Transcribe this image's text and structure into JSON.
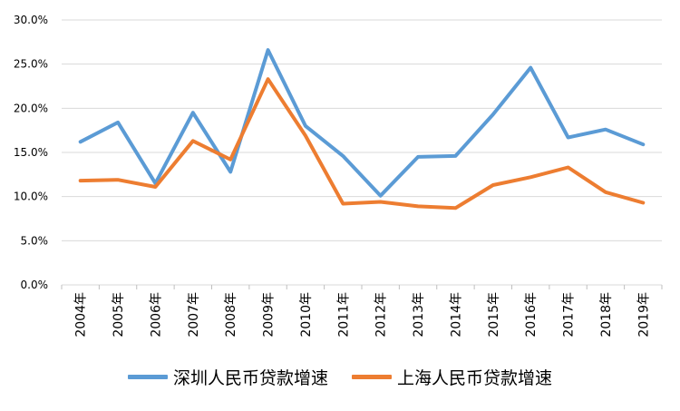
{
  "chart_data": {
    "type": "line",
    "title": "",
    "xlabel": "",
    "ylabel": "",
    "categories": [
      "2004年",
      "2005年",
      "2006年",
      "2007年",
      "2008年",
      "2009年",
      "2010年",
      "2011年",
      "2012年",
      "2013年",
      "2014年",
      "2015年",
      "2016年",
      "2017年",
      "2018年",
      "2019年"
    ],
    "series": [
      {
        "name": "深圳人民币贷款增速",
        "color": "#5B9BD5",
        "values": [
          16.2,
          18.4,
          11.5,
          19.5,
          12.8,
          26.6,
          18.0,
          14.6,
          10.1,
          14.5,
          14.6,
          19.3,
          24.6,
          16.7,
          17.6,
          15.9
        ]
      },
      {
        "name": "上海人民币贷款增速",
        "color": "#ED7D31",
        "values": [
          11.8,
          11.9,
          11.1,
          16.3,
          14.2,
          23.3,
          16.9,
          9.2,
          9.4,
          8.9,
          8.7,
          11.3,
          12.2,
          13.3,
          10.5,
          9.3
        ]
      }
    ],
    "yticks": [
      "0.0%",
      "5.0%",
      "10.0%",
      "15.0%",
      "20.0%",
      "25.0%",
      "30.0%"
    ],
    "ylim": [
      0,
      30
    ],
    "grid": true,
    "legend_position": "bottom"
  }
}
